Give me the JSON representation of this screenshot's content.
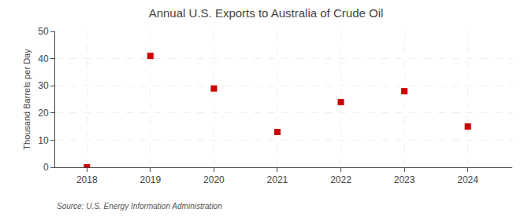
{
  "chart_data": {
    "type": "scatter",
    "title": "Annual U.S. Exports to Australia of Crude Oil",
    "ylabel": "Thousand Barrels per Day",
    "source": "Source: U.S. Energy Information Administration",
    "x": [
      2018,
      2019,
      2020,
      2021,
      2022,
      2023,
      2024
    ],
    "values": [
      0,
      41,
      29,
      13,
      24,
      28,
      15
    ],
    "xlim": [
      2017.5,
      2024.7
    ],
    "ylim": [
      0,
      50
    ],
    "xticks": [
      2018,
      2019,
      2020,
      2021,
      2022,
      2023,
      2024
    ],
    "yticks": [
      0,
      10,
      20,
      30,
      40,
      50
    ],
    "color": "#cc0000",
    "marker": "square",
    "grid": true
  }
}
